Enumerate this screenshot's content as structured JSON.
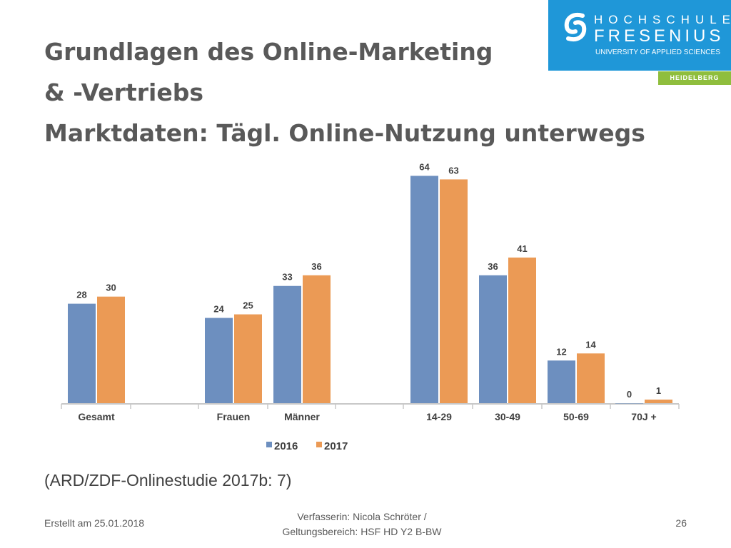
{
  "header": {
    "title_lines": [
      "Grundlagen des Online-Marketing",
      "& -Vertriebs",
      "Marktdaten: Tägl. Online-Nutzung unterwegs"
    ]
  },
  "logo": {
    "line1": "HOCHSCHULE",
    "line2": "FRESENIUS",
    "line3": "UNIVERSITY OF APPLIED SCIENCES",
    "campus": "HEIDELBERG",
    "brand_color": "#1f97d8",
    "campus_color": "#8fbe3d"
  },
  "chart_data": {
    "type": "bar",
    "title": "",
    "xlabel": "",
    "ylabel": "",
    "ylim": [
      0,
      70
    ],
    "grid": false,
    "legend_position": "bottom-center",
    "categories": [
      "Gesamt",
      "Frauen",
      "Männer",
      "14-29",
      "30-49",
      "50-69",
      "70J +"
    ],
    "series": [
      {
        "name": "2016",
        "color": "#6d8fbf",
        "values": [
          28,
          24,
          33,
          64,
          36,
          12,
          0
        ]
      },
      {
        "name": "2017",
        "color": "#eb9a55",
        "values": [
          30,
          25,
          36,
          63,
          41,
          14,
          1
        ]
      }
    ]
  },
  "source_text": "(ARD/ZDF-Onlinestudie 2017b: 7)",
  "footer": {
    "created": "Erstellt am 25.01.2018",
    "author_line1": "Verfasserin: Nicola Schröter /",
    "author_line2": "Geltungsbereich:  HSF HD Y2 B-BW",
    "page_number": "26"
  }
}
